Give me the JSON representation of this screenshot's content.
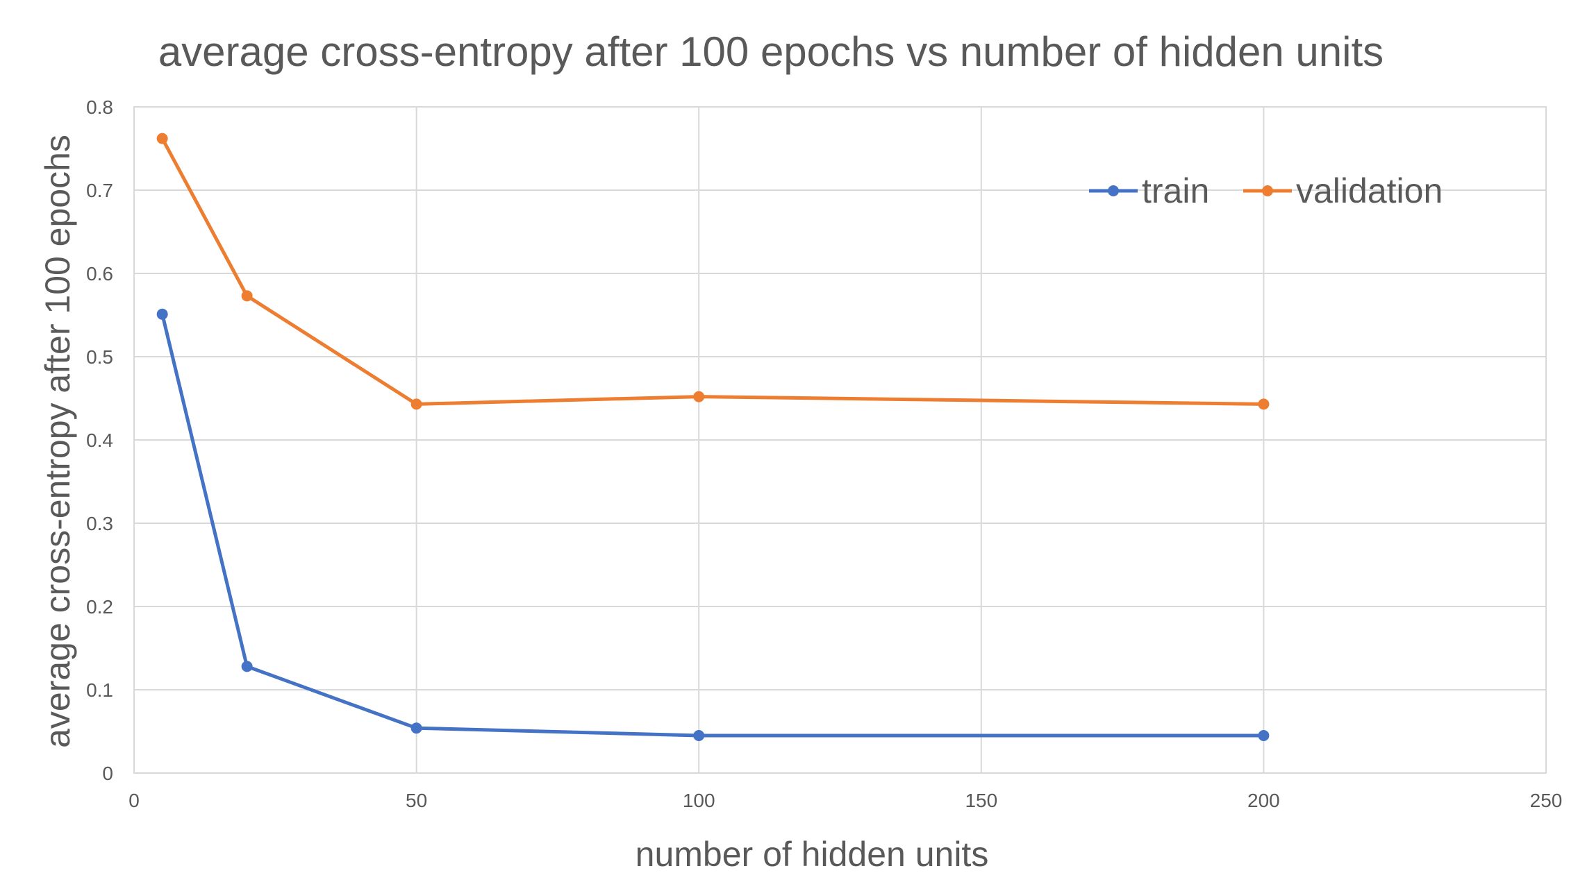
{
  "chart_data": {
    "type": "line",
    "title": "average cross-entropy after 100 epochs vs number of hidden units",
    "xlabel": "number of hidden units",
    "ylabel": "average cross-entropy after 100 epochs",
    "xlim": [
      0,
      250
    ],
    "ylim": [
      0,
      0.8
    ],
    "xticks": [
      "0",
      "50",
      "100",
      "150",
      "200",
      "250"
    ],
    "yticks": [
      "0",
      "0.1",
      "0.2",
      "0.3",
      "0.4",
      "0.5",
      "0.6",
      "0.7",
      "0.8"
    ],
    "grid": true,
    "legend_position": "top-right",
    "x": [
      5,
      20,
      50,
      100,
      200
    ],
    "series": [
      {
        "name": "train",
        "color": "#4472C4",
        "values": [
          0.551,
          0.128,
          0.054,
          0.045,
          0.045
        ]
      },
      {
        "name": "validation",
        "color": "#ED7D31",
        "values": [
          0.762,
          0.573,
          0.443,
          0.452,
          0.443
        ]
      }
    ]
  }
}
